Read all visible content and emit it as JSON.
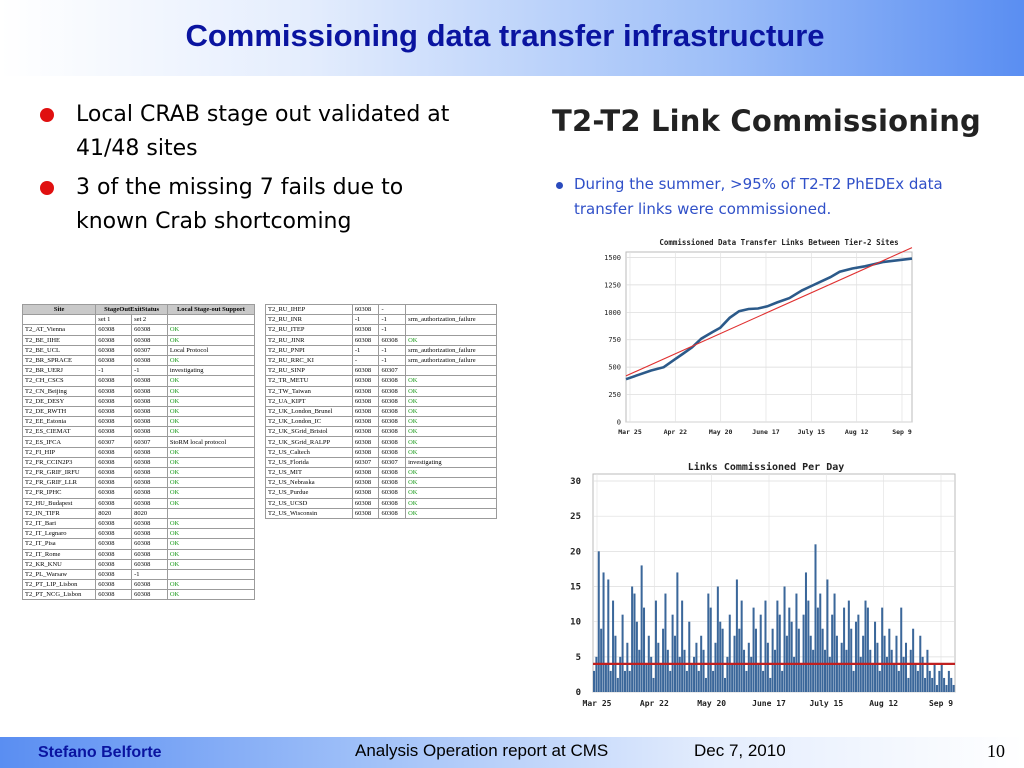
{
  "slide": {
    "title": "Commissioning data transfer infrastructure",
    "bullets": [
      "Local CRAB stage out validated at 41/48 sites",
      "3 of the missing 7 fails due to known Crab shortcoming"
    ]
  },
  "table_left": {
    "headers": [
      "Site",
      "StageOutExitStatus",
      "Local Stage-out Support"
    ],
    "rows": [
      [
        "",
        "set 1",
        "set 2",
        ""
      ],
      [
        "T2_AT_Vienna",
        "60308",
        "60308",
        "OK"
      ],
      [
        "T2_BE_IIHE",
        "60308",
        "60308",
        "OK"
      ],
      [
        "T2_BE_UCL",
        "60308",
        "60307",
        "Local Protocol"
      ],
      [
        "T2_BR_SPRACE",
        "60308",
        "60308",
        "OK"
      ],
      [
        "T2_BR_UERJ",
        "-1",
        "-1",
        "investigating"
      ],
      [
        "T2_CH_CSCS",
        "60308",
        "60308",
        "OK"
      ],
      [
        "T2_CN_Beijing",
        "60308",
        "60308",
        "OK"
      ],
      [
        "T2_DE_DESY",
        "60308",
        "60308",
        "OK"
      ],
      [
        "T2_DE_RWTH",
        "60308",
        "60308",
        "OK"
      ],
      [
        "T2_EE_Estonia",
        "60308",
        "60308",
        "OK"
      ],
      [
        "T2_ES_CIEMAT",
        "60308",
        "60308",
        "OK"
      ],
      [
        "T2_ES_IFCA",
        "60307",
        "60307",
        "StoRM local protocol"
      ],
      [
        "T2_FI_HIP",
        "60308",
        "60308",
        "OK"
      ],
      [
        "T2_FR_CCIN2P3",
        "60308",
        "60308",
        "OK"
      ],
      [
        "T2_FR_GRIF_IRFU",
        "60308",
        "60308",
        "OK"
      ],
      [
        "T2_FR_GRIF_LLR",
        "60308",
        "60308",
        "OK"
      ],
      [
        "T2_FR_IPHC",
        "60308",
        "60308",
        "OK"
      ],
      [
        "T2_HU_Budapest",
        "60308",
        "60308",
        "OK"
      ],
      [
        "T2_IN_TIFR",
        "8020",
        "8020",
        ""
      ],
      [
        "T2_IT_Bari",
        "60308",
        "60308",
        "OK"
      ],
      [
        "T2_IT_Legnaro",
        "60308",
        "60308",
        "OK"
      ],
      [
        "T2_IT_Pisa",
        "60308",
        "60308",
        "OK"
      ],
      [
        "T2_IT_Rome",
        "60308",
        "60308",
        "OK"
      ],
      [
        "T2_KR_KNU",
        "60308",
        "60308",
        "OK"
      ],
      [
        "T2_PL_Warsaw",
        "60308",
        "-1",
        ""
      ],
      [
        "T2_PT_LIP_Lisbon",
        "60308",
        "60308",
        "OK"
      ],
      [
        "T2_PT_NCG_Lisbon",
        "60308",
        "60308",
        "OK"
      ]
    ]
  },
  "table_right": {
    "rows": [
      [
        "T2_RU_IHEP",
        "60308",
        "-",
        ""
      ],
      [
        "T2_RU_INR",
        "-1",
        "-1",
        "srm_authorization_failure"
      ],
      [
        "T2_RU_ITEP",
        "60308",
        "-1",
        ""
      ],
      [
        "T2_RU_JINR",
        "60308",
        "60308",
        "OK"
      ],
      [
        "T2_RU_PNPI",
        "-1",
        "-1",
        "srm_authorization_failure"
      ],
      [
        "T2_RU_RRC_KI",
        "-",
        "-1",
        "srm_authorization_failure"
      ],
      [
        "T2_RU_SINP",
        "60308",
        "60307",
        ""
      ],
      [
        "T2_TR_METU",
        "60308",
        "60308",
        "OK"
      ],
      [
        "T2_TW_Taiwan",
        "60308",
        "60308",
        "OK"
      ],
      [
        "T2_UA_KIPT",
        "60308",
        "60308",
        "OK"
      ],
      [
        "T2_UK_London_Brunel",
        "60308",
        "60308",
        "OK"
      ],
      [
        "T2_UK_London_IC",
        "60308",
        "60308",
        "OK"
      ],
      [
        "T2_UK_SGrid_Bristol",
        "60308",
        "60308",
        "OK"
      ],
      [
        "T2_UK_SGrid_RALPP",
        "60308",
        "60308",
        "OK"
      ],
      [
        "T2_US_Caltech",
        "60308",
        "60308",
        "OK"
      ],
      [
        "T2_US_Florida",
        "60307",
        "60307",
        "investigating"
      ],
      [
        "T2_US_MIT",
        "60308",
        "60308",
        "OK"
      ],
      [
        "T2_US_Nebraska",
        "60308",
        "60308",
        "OK"
      ],
      [
        "T2_US_Purdue",
        "60308",
        "60308",
        "OK"
      ],
      [
        "T2_US_UCSD",
        "60308",
        "60308",
        "OK"
      ],
      [
        "T2_US_Wisconsin",
        "60308",
        "60308",
        "OK"
      ]
    ]
  },
  "right_panel": {
    "title": "T2-T2 Link Commissioning",
    "bullet": "During the summer, >95% of T2-T2 PhEDEx data transfer links were commissioned."
  },
  "chart_data": [
    {
      "type": "line",
      "title": "Commissioned Data Transfer Links Between Tier-2 Sites",
      "xlabel": "",
      "ylabel": "",
      "x_tick_labels": [
        "Mar 25",
        "Apr 22",
        "May 20",
        "June 17",
        "July 15",
        "Aug 12",
        "Sep 9"
      ],
      "y_ticks": [
        0,
        250,
        500,
        750,
        1000,
        1250,
        1500
      ],
      "ylim": [
        0,
        1550
      ],
      "x_range_days": [
        0,
        182
      ],
      "grid": true,
      "series": [
        {
          "x": [
            0,
            8,
            16,
            24,
            30,
            36,
            42,
            48,
            55,
            60,
            66,
            72,
            78,
            84,
            90,
            96,
            104,
            112,
            118,
            124,
            130,
            136,
            144,
            152,
            158,
            164,
            170,
            176,
            182
          ],
          "values": [
            390,
            430,
            470,
            500,
            560,
            620,
            680,
            760,
            820,
            860,
            950,
            1010,
            1030,
            1035,
            1055,
            1090,
            1130,
            1200,
            1240,
            1280,
            1320,
            1370,
            1400,
            1420,
            1440,
            1460,
            1470,
            1480,
            1490
          ],
          "color": "#2c5a8a"
        },
        {
          "x": [
            0,
            182
          ],
          "values": [
            420,
            1590
          ],
          "color": "#e03030"
        }
      ]
    },
    {
      "type": "bar",
      "title": "Links Commissioned Per Day",
      "xlabel": "",
      "ylabel": "",
      "x_tick_labels": [
        "Mar 25",
        "Apr 22",
        "May 20",
        "June 17",
        "July 15",
        "Aug 12",
        "Sep 9"
      ],
      "y_ticks": [
        0,
        5,
        10,
        15,
        20,
        25,
        30
      ],
      "ylim": [
        0,
        31
      ],
      "grid": true,
      "values": [
        3,
        5,
        20,
        9,
        17,
        4,
        16,
        3,
        13,
        8,
        2,
        5,
        11,
        3,
        7,
        3,
        15,
        14,
        10,
        6,
        18,
        12,
        4,
        8,
        5,
        2,
        13,
        7,
        4,
        9,
        14,
        6,
        3,
        11,
        8,
        17,
        5,
        13,
        6,
        3,
        10,
        4,
        5,
        7,
        3,
        8,
        6,
        2,
        14,
        12,
        3,
        7,
        15,
        10,
        9,
        2,
        5,
        11,
        4,
        8,
        16,
        9,
        13,
        6,
        3,
        7,
        5,
        12,
        9,
        4,
        11,
        3,
        13,
        7,
        2,
        9,
        6,
        13,
        11,
        3,
        15,
        8,
        12,
        10,
        5,
        14,
        9,
        4,
        11,
        17,
        13,
        8,
        6,
        21,
        12,
        14,
        9,
        6,
        16,
        5,
        11,
        14,
        8,
        4,
        7,
        12,
        6,
        13,
        9,
        3,
        10,
        11,
        5,
        8,
        13,
        12,
        6,
        4,
        10,
        7,
        3,
        12,
        8,
        5,
        9,
        6,
        4,
        8,
        3,
        12,
        5,
        7,
        2,
        6,
        9,
        4,
        3,
        8,
        5,
        2,
        6,
        3,
        2,
        4,
        1,
        3,
        4,
        2,
        1,
        3,
        2,
        1
      ],
      "bar_color": "#3b679a",
      "reference_line": {
        "value": 4,
        "color": "#c02020"
      }
    }
  ],
  "footer": {
    "author": "Stefano Belforte",
    "center": "Analysis Operation report at CMS",
    "date": "Dec 7, 2010",
    "page": "10"
  }
}
